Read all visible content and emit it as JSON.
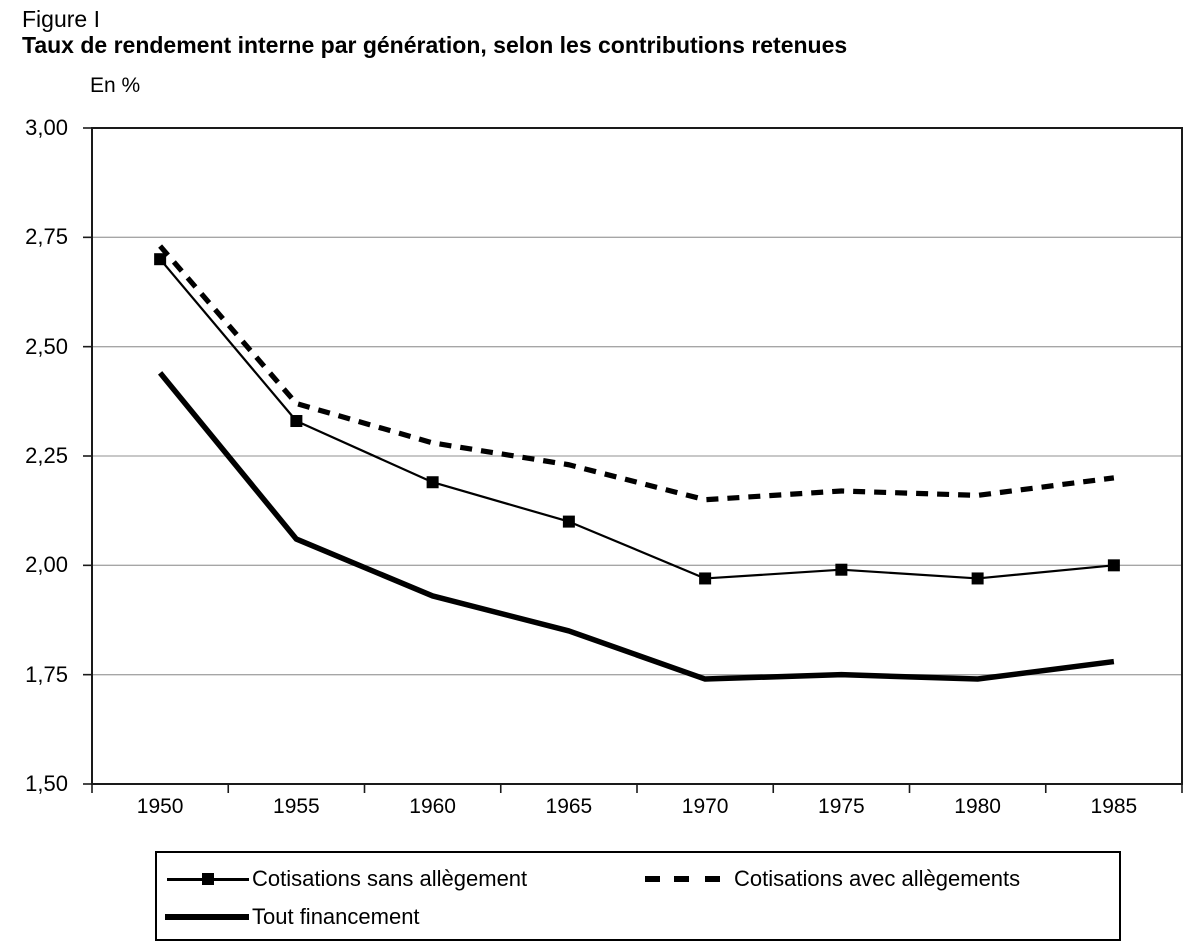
{
  "header": {
    "figure_label": "Figure I",
    "title": "Taux de rendement interne par génération, selon les contributions retenues"
  },
  "chart_data": {
    "type": "line",
    "title": "Taux de rendement interne par génération, selon les contributions retenues",
    "y_unit_label": "En %",
    "xlabel": "",
    "ylabel": "En %",
    "categories": [
      "1950",
      "1955",
      "1960",
      "1965",
      "1970",
      "1975",
      "1980",
      "1985"
    ],
    "x_values": [
      1950,
      1955,
      1960,
      1965,
      1970,
      1975,
      1980,
      1985
    ],
    "series": [
      {
        "name": "Cotisations sans allègement",
        "style": "thin-solid-square-markers",
        "values": [
          2.7,
          2.33,
          2.19,
          2.1,
          1.97,
          1.99,
          1.97,
          2.0
        ]
      },
      {
        "name": "Cotisations avec allègements",
        "style": "thick-dashed",
        "values": [
          2.73,
          2.37,
          2.28,
          2.23,
          2.15,
          2.17,
          2.16,
          2.2
        ]
      },
      {
        "name": "Tout financement",
        "style": "thick-solid",
        "values": [
          2.44,
          2.06,
          1.93,
          1.85,
          1.74,
          1.75,
          1.74,
          1.78
        ]
      }
    ],
    "ylim": [
      1.5,
      3.0
    ],
    "y_tick_step": 0.25,
    "y_ticks": [
      "3,00",
      "2,75",
      "2,50",
      "2,25",
      "2,00",
      "1,75",
      "1,50"
    ],
    "grid": "horizontal-gray",
    "legend_position": "bottom-box",
    "colors": {
      "line": "#000000",
      "grid": "#a6a6a6",
      "frame": "#1a1a1a",
      "background": "#ffffff"
    }
  },
  "legend": {
    "items": [
      {
        "label": "Cotisations sans allègement",
        "swatch": "thin-line-with-square-marker"
      },
      {
        "label": "Cotisations avec allègements",
        "swatch": "dashed-line"
      },
      {
        "label": "Tout financement",
        "swatch": "thick-line"
      }
    ]
  }
}
